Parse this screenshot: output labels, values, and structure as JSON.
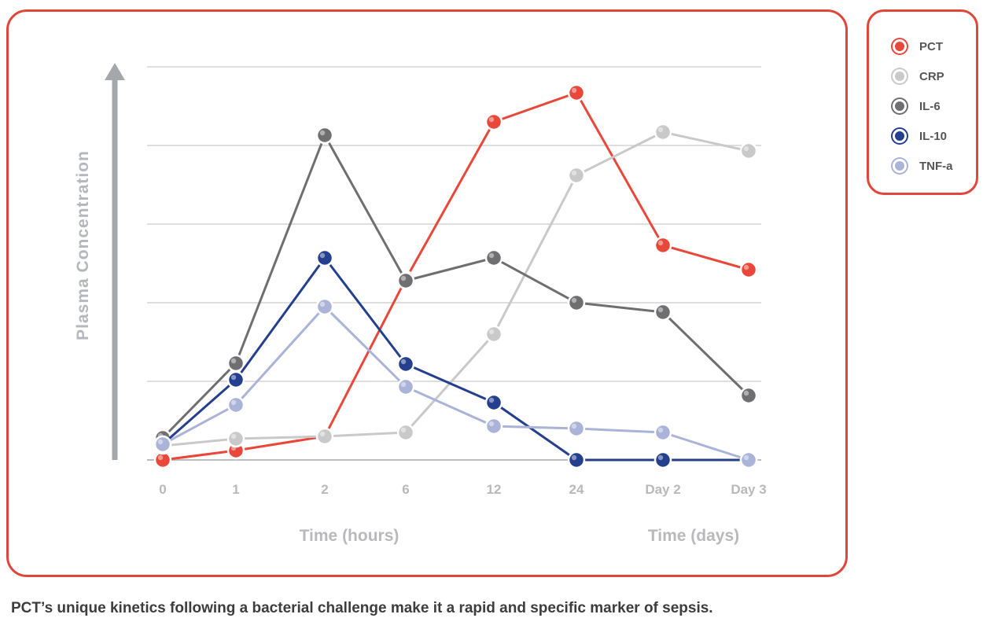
{
  "caption": "PCT’s unique kinetics following a bacterial challenge make it a rapid and specific marker of sepsis.",
  "chart_data": {
    "type": "line",
    "ylabel": "Plasma Concentration",
    "x_categories": [
      "0",
      "1",
      "2",
      "6",
      "12",
      "24",
      "Day 2",
      "Day 3"
    ],
    "x_group_labels": [
      {
        "label": "Time (hours)",
        "span": [
          "0",
          "24"
        ]
      },
      {
        "label": "Time (days)",
        "span": [
          "Day 2",
          "Day 3"
        ]
      }
    ],
    "ylim": [
      0,
      5
    ],
    "grid": true,
    "legend_position": "right",
    "series": [
      {
        "name": "PCT",
        "color": "#e8473a",
        "values": [
          0.0,
          0.12,
          0.3,
          2.3,
          4.3,
          4.67,
          2.73,
          2.42
        ]
      },
      {
        "name": "CRP",
        "color": "#c9c9c9",
        "values": [
          0.18,
          0.27,
          0.3,
          0.35,
          1.6,
          3.62,
          4.17,
          3.93
        ]
      },
      {
        "name": "IL-6",
        "color": "#6f6f72",
        "values": [
          0.28,
          1.23,
          4.13,
          2.28,
          2.57,
          2.0,
          1.88,
          0.82
        ]
      },
      {
        "name": "IL-10",
        "color": "#233f8e",
        "values": [
          0.2,
          1.02,
          2.57,
          1.22,
          0.73,
          0.0,
          0.0,
          0.0
        ]
      },
      {
        "name": "TNF-a",
        "color": "#aab3d8",
        "values": [
          0.2,
          0.7,
          1.95,
          0.93,
          0.43,
          0.4,
          0.35,
          0.0
        ]
      }
    ]
  }
}
